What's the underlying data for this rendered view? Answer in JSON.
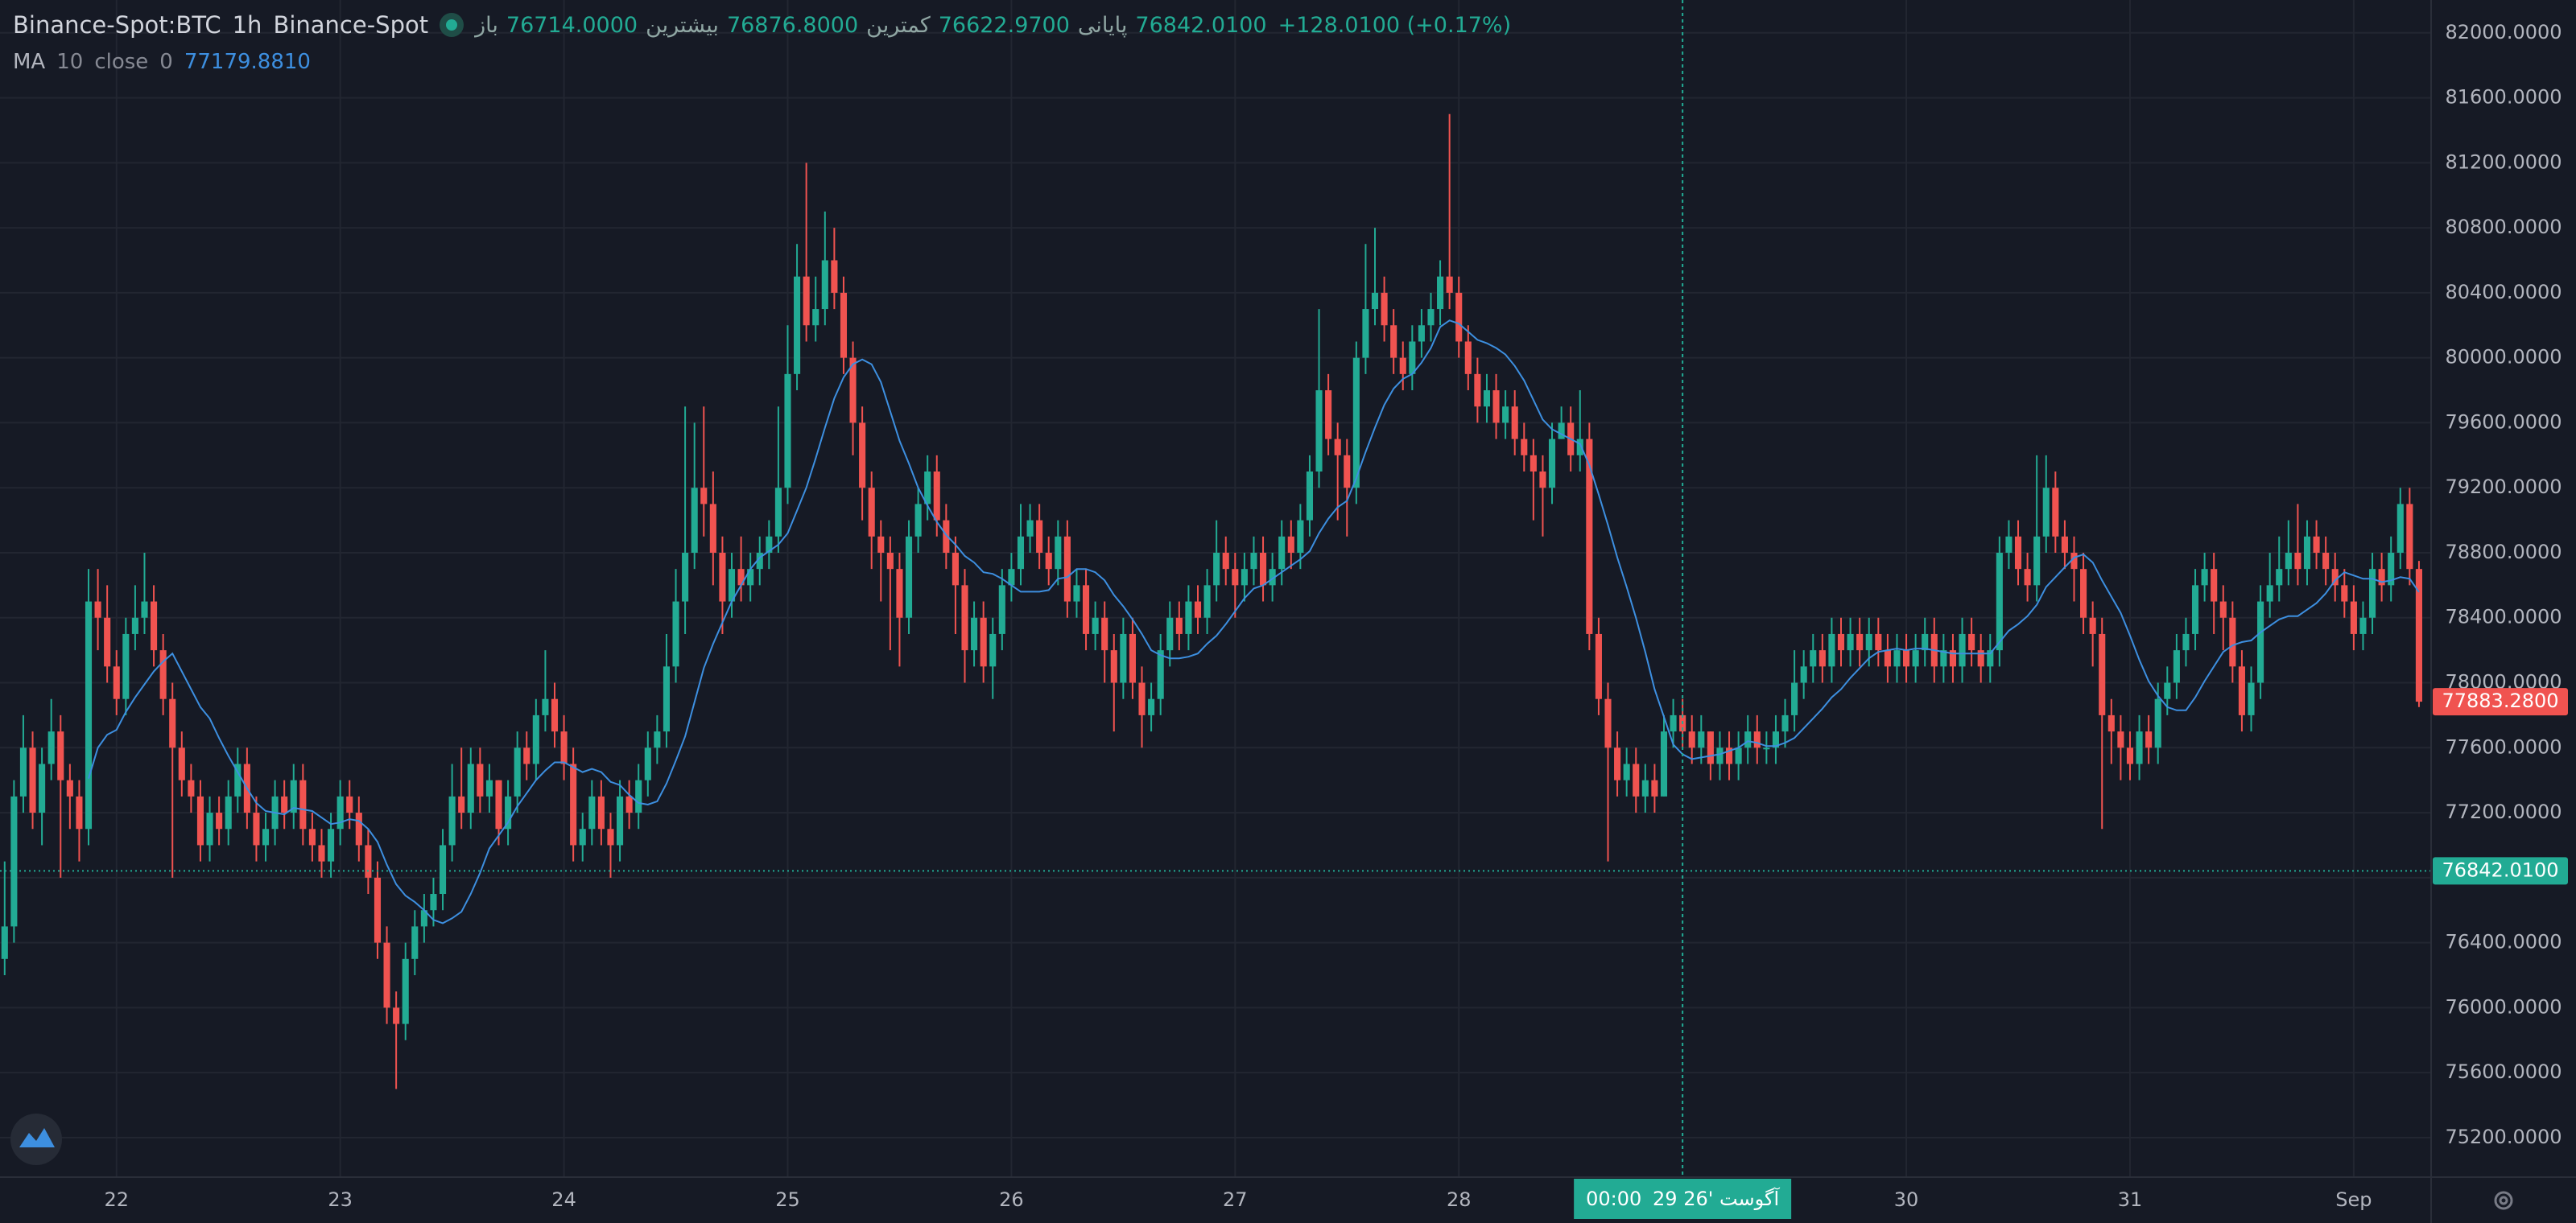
{
  "header": {
    "symbol": "Binance-Spot:BTC",
    "interval": "1h",
    "exchange": "Binance-Spot",
    "ohlc": [
      {
        "label": "باز",
        "value": "76714.0000"
      },
      {
        "label": "بیشترین",
        "value": "76876.8000"
      },
      {
        "label": "کمترین",
        "value": "76622.9700"
      },
      {
        "label": "پایانی",
        "value": "76842.0100"
      }
    ],
    "change": "+128.0100 (+0.17%)"
  },
  "chart_data": {
    "type": "candlestick",
    "up_color": "#22ab94",
    "down_color": "#f05350",
    "grid": true,
    "indicator": {
      "name": "MA",
      "length": 10,
      "source": "close",
      "offset": 0,
      "value": "77179.8810",
      "color": "#3d8fe0"
    },
    "open": [
      76300,
      76500,
      77300,
      77600,
      77200,
      77500,
      77700,
      77400,
      77300,
      77100,
      78500,
      78400,
      78100,
      77900,
      78300,
      78400,
      78500,
      78200,
      77900,
      77600,
      77400,
      77300,
      77000,
      77200,
      77100,
      77300,
      77500,
      77200,
      77000,
      77100,
      77300,
      77200,
      77400,
      77100,
      77000,
      76900,
      77100,
      77300,
      77200,
      77000,
      76800,
      76400,
      76000,
      75900,
      76300,
      76500,
      76600,
      76700,
      77000,
      77300,
      77200,
      77500,
      77300,
      77400,
      77100,
      77300,
      77600,
      77500,
      77800,
      77900,
      77700,
      77500,
      77000,
      77100,
      77300,
      77100,
      77000,
      77300,
      77200,
      77400,
      77600,
      77700,
      78100,
      78500,
      78800,
      79200,
      79100,
      78800,
      78500,
      78700,
      78600,
      78700,
      78800,
      78900,
      79200,
      79900,
      80500,
      80200,
      80300,
      80600,
      80400,
      80000,
      79600,
      79200,
      78900,
      78800,
      78700,
      78400,
      78900,
      79100,
      79300,
      79000,
      78800,
      78600,
      78200,
      78400,
      78100,
      78300,
      78600,
      78700,
      78900,
      79000,
      78800,
      78700,
      78900,
      78500,
      78600,
      78300,
      78400,
      78200,
      78000,
      78300,
      78000,
      77800,
      77900,
      78200,
      78400,
      78300,
      78500,
      78400,
      78600,
      78800,
      78700,
      78600,
      78700,
      78800,
      78600,
      78700,
      78900,
      78800,
      79000,
      79300,
      79800,
      79500,
      79400,
      79200,
      80000,
      80300,
      80400,
      80200,
      80000,
      79900,
      80100,
      80200,
      80300,
      80500,
      80400,
      80100,
      79900,
      79700,
      79800,
      79600,
      79700,
      79500,
      79400,
      79300,
      79200,
      79500,
      79600,
      79400,
      79500,
      78300,
      77900,
      77600,
      77400,
      77500,
      77300,
      77400,
      77300,
      77700,
      77800,
      77700,
      77600,
      77700,
      77500,
      77600,
      77500,
      77600,
      77700,
      77600,
      77600,
      77700,
      77800,
      78000,
      78100,
      78200,
      78100,
      78300,
      78200,
      78300,
      78200,
      78300,
      78200,
      78100,
      78200,
      78100,
      78200,
      78300,
      78100,
      78200,
      78100,
      78300,
      78200,
      78100,
      78200,
      78800,
      78900,
      78700,
      78600,
      78900,
      79200,
      78900,
      78800,
      78700,
      78400,
      78300,
      77800,
      77700,
      77600,
      77500,
      77700,
      77600,
      77900,
      78000,
      78200,
      78300,
      78600,
      78700,
      78500,
      78400,
      78100,
      77800,
      78000,
      78500,
      78600,
      78700,
      78800,
      78700,
      78900,
      78800,
      78700,
      78600,
      78500,
      78300,
      78400,
      78700,
      78600,
      78800,
      79100,
      78700
    ],
    "high": [
      76900,
      77400,
      77800,
      77700,
      77600,
      77900,
      77800,
      77500,
      77400,
      78700,
      78700,
      78600,
      78200,
      78400,
      78600,
      78800,
      78600,
      78300,
      78000,
      77700,
      77500,
      77400,
      77300,
      77300,
      77400,
      77600,
      77600,
      77300,
      77200,
      77400,
      77400,
      77500,
      77500,
      77200,
      77100,
      77200,
      77400,
      77400,
      77300,
      77100,
      76900,
      76500,
      76100,
      76400,
      76600,
      76700,
      76800,
      77100,
      77500,
      77600,
      77600,
      77600,
      77500,
      77400,
      77400,
      77700,
      77700,
      77900,
      78200,
      78000,
      77800,
      77600,
      77200,
      77400,
      77400,
      77200,
      77400,
      77400,
      77500,
      77700,
      77800,
      78300,
      78700,
      79700,
      79600,
      79700,
      79300,
      78900,
      78800,
      78900,
      78800,
      78900,
      79000,
      79700,
      80200,
      80700,
      81200,
      80500,
      80900,
      80800,
      80500,
      80100,
      79700,
      79300,
      79000,
      78900,
      78800,
      79000,
      79200,
      79400,
      79400,
      79100,
      78900,
      78700,
      78500,
      78500,
      78400,
      78700,
      78800,
      79100,
      79100,
      79100,
      78900,
      79000,
      79000,
      78700,
      78700,
      78500,
      78500,
      78300,
      78400,
      78400,
      78100,
      78000,
      78300,
      78500,
      78500,
      78600,
      78600,
      78700,
      79000,
      78900,
      78800,
      78800,
      78900,
      78900,
      78800,
      79000,
      79000,
      79100,
      79400,
      80300,
      79900,
      79600,
      79500,
      80100,
      80700,
      80800,
      80500,
      80300,
      80100,
      80200,
      80300,
      80400,
      80600,
      81500,
      80500,
      80200,
      80000,
      79900,
      79900,
      79800,
      79800,
      79600,
      79500,
      79400,
      79600,
      79700,
      79700,
      79800,
      79600,
      78400,
      78000,
      77700,
      77600,
      77600,
      77500,
      77500,
      77800,
      77900,
      77900,
      77800,
      77800,
      77700,
      77700,
      77700,
      77700,
      77800,
      77800,
      77700,
      77800,
      77900,
      78200,
      78200,
      78300,
      78300,
      78400,
      78400,
      78400,
      78400,
      78400,
      78400,
      78300,
      78300,
      78300,
      78300,
      78400,
      78400,
      78300,
      78300,
      78400,
      78400,
      78300,
      78300,
      78900,
      79000,
      79000,
      78800,
      79400,
      79400,
      79300,
      79000,
      78900,
      78800,
      78500,
      78400,
      77900,
      77800,
      77700,
      77800,
      77800,
      78000,
      78100,
      78300,
      78400,
      78700,
      78800,
      78800,
      78600,
      78500,
      78200,
      78100,
      78600,
      78800,
      78900,
      79000,
      79100,
      79000,
      79000,
      78900,
      78800,
      78700,
      78600,
      78500,
      78800,
      78800,
      78900,
      79200,
      79200,
      78750
    ],
    "low": [
      76200,
      76400,
      77200,
      77100,
      77000,
      77400,
      76800,
      77100,
      76900,
      77000,
      78200,
      78000,
      77800,
      77800,
      78200,
      78300,
      78100,
      77800,
      76800,
      77300,
      77200,
      76900,
      76900,
      77000,
      77000,
      77200,
      77100,
      76900,
      76900,
      77000,
      77100,
      77100,
      77000,
      76900,
      76800,
      76800,
      77000,
      77100,
      76900,
      76700,
      76300,
      75900,
      75500,
      75800,
      76200,
      76400,
      76500,
      76600,
      76900,
      77100,
      77100,
      77200,
      77200,
      77000,
      77000,
      77200,
      77400,
      77400,
      77700,
      77600,
      77400,
      76900,
      76900,
      77000,
      77000,
      76800,
      76900,
      77100,
      77100,
      77300,
      77500,
      77600,
      78000,
      78300,
      78700,
      78900,
      78600,
      78300,
      78400,
      78500,
      78500,
      78600,
      78700,
      78800,
      79100,
      79800,
      80100,
      80100,
      80200,
      80300,
      79900,
      79400,
      79000,
      78700,
      78500,
      78200,
      78100,
      78300,
      78800,
      79000,
      78900,
      78700,
      78300,
      78000,
      78100,
      78000,
      77900,
      78200,
      78500,
      78600,
      78800,
      78700,
      78600,
      78600,
      78400,
      78400,
      78200,
      78200,
      78000,
      77700,
      77900,
      77900,
      77600,
      77700,
      77800,
      78100,
      78200,
      78200,
      78300,
      78300,
      78500,
      78600,
      78400,
      78500,
      78600,
      78500,
      78500,
      78600,
      78700,
      78700,
      78900,
      79200,
      79400,
      79000,
      78900,
      79100,
      79900,
      80200,
      80100,
      79900,
      79800,
      79800,
      80000,
      80100,
      80200,
      80300,
      80000,
      79800,
      79600,
      79600,
      79500,
      79500,
      79400,
      79300,
      79000,
      78900,
      79100,
      79500,
      79300,
      79300,
      78200,
      77800,
      76900,
      77300,
      77300,
      77200,
      77200,
      77200,
      77300,
      77600,
      77600,
      77500,
      77500,
      77400,
      77400,
      77400,
      77400,
      77500,
      77500,
      77500,
      77500,
      77600,
      77700,
      77900,
      78000,
      78000,
      78000,
      78100,
      78100,
      78100,
      78100,
      78100,
      78000,
      78000,
      78000,
      78000,
      78100,
      78000,
      78000,
      78000,
      78000,
      78100,
      78000,
      78000,
      78100,
      78700,
      78600,
      78500,
      78500,
      78800,
      78800,
      78700,
      78500,
      78300,
      78100,
      77100,
      77500,
      77400,
      77400,
      77400,
      77500,
      77500,
      77800,
      77900,
      78100,
      78200,
      78500,
      78300,
      78200,
      78000,
      77700,
      77700,
      77900,
      78400,
      78500,
      78600,
      78600,
      78600,
      78700,
      78600,
      78500,
      78400,
      78200,
      78200,
      78300,
      78500,
      78500,
      78700,
      78600,
      77850
    ],
    "close": [
      76500,
      77300,
      77600,
      77200,
      77500,
      77700,
      77400,
      77300,
      77100,
      78500,
      78400,
      78100,
      77900,
      78300,
      78400,
      78500,
      78200,
      77900,
      77600,
      77400,
      77300,
      77000,
      77200,
      77100,
      77300,
      77500,
      77200,
      77000,
      77100,
      77300,
      77200,
      77400,
      77100,
      77000,
      76900,
      77100,
      77300,
      77200,
      77000,
      76800,
      76400,
      76000,
      75900,
      76300,
      76500,
      76600,
      76700,
      77000,
      77300,
      77200,
      77500,
      77300,
      77400,
      77100,
      77300,
      77600,
      77500,
      77800,
      77900,
      77700,
      77500,
      77000,
      77100,
      77300,
      77100,
      77000,
      77300,
      77200,
      77400,
      77600,
      77700,
      78100,
      78500,
      78800,
      79200,
      79100,
      78800,
      78500,
      78700,
      78600,
      78700,
      78800,
      78900,
      79200,
      79900,
      80500,
      80200,
      80300,
      80600,
      80400,
      80000,
      79600,
      79200,
      78900,
      78800,
      78700,
      78400,
      78900,
      79100,
      79300,
      79000,
      78800,
      78600,
      78200,
      78400,
      78100,
      78300,
      78600,
      78700,
      78900,
      79000,
      78800,
      78700,
      78900,
      78500,
      78600,
      78300,
      78400,
      78200,
      78000,
      78300,
      78000,
      77800,
      77900,
      78200,
      78400,
      78300,
      78500,
      78400,
      78600,
      78800,
      78700,
      78600,
      78700,
      78800,
      78600,
      78700,
      78900,
      78800,
      79000,
      79300,
      79800,
      79500,
      79400,
      79200,
      80000,
      80300,
      80400,
      80200,
      80000,
      79900,
      80100,
      80200,
      80300,
      80500,
      80400,
      80100,
      79900,
      79700,
      79800,
      79600,
      79700,
      79500,
      79400,
      79300,
      79200,
      79500,
      79600,
      79400,
      79500,
      78300,
      77900,
      77600,
      77400,
      77500,
      77300,
      77400,
      77300,
      77700,
      77800,
      77700,
      77600,
      77700,
      77500,
      77600,
      77500,
      77600,
      77700,
      77600,
      77600,
      77700,
      77800,
      78000,
      78100,
      78200,
      78100,
      78300,
      78200,
      78300,
      78200,
      78300,
      78200,
      78100,
      78200,
      78100,
      78200,
      78300,
      78100,
      78200,
      78100,
      78300,
      78200,
      78100,
      78200,
      78800,
      78900,
      78700,
      78600,
      78900,
      79200,
      78900,
      78800,
      78700,
      78400,
      78300,
      77800,
      77700,
      77600,
      77500,
      77700,
      77600,
      77900,
      78000,
      78200,
      78300,
      78600,
      78700,
      78500,
      78400,
      78100,
      77800,
      78000,
      78500,
      78600,
      78700,
      78800,
      78700,
      78900,
      78800,
      78700,
      78600,
      78500,
      78300,
      78400,
      78700,
      78600,
      78800,
      79100,
      78700,
      77883.28
    ],
    "xlim": [
      -0.5,
      260.3
    ],
    "xticks": [
      {
        "value": 12,
        "label": "22"
      },
      {
        "value": 36,
        "label": "23"
      },
      {
        "value": 60,
        "label": "24"
      },
      {
        "value": 84,
        "label": "25"
      },
      {
        "value": 108,
        "label": "26"
      },
      {
        "value": 132,
        "label": "27"
      },
      {
        "value": 156,
        "label": "28"
      },
      {
        "value": 204,
        "label": "30"
      },
      {
        "value": 228,
        "label": "31"
      },
      {
        "value": 252,
        "label": "Sep"
      }
    ],
    "ylim": [
      74957,
      82202
    ],
    "yticks": [
      {
        "value": 75200,
        "label": "75200.0000"
      },
      {
        "value": 75600,
        "label": "75600.0000"
      },
      {
        "value": 76000,
        "label": "76000.0000"
      },
      {
        "value": 76400,
        "label": "76400.0000"
      },
      {
        "value": 76800,
        "label": "76800.0000"
      },
      {
        "value": 77200,
        "label": "77200.0000"
      },
      {
        "value": 77600,
        "label": "77600.0000"
      },
      {
        "value": 78000,
        "label": "78000.0000"
      },
      {
        "value": 78400,
        "label": "78400.0000"
      },
      {
        "value": 78800,
        "label": "78800.0000"
      },
      {
        "value": 79200,
        "label": "79200.0000"
      },
      {
        "value": 79600,
        "label": "79600.0000"
      },
      {
        "value": 80000,
        "label": "80000.0000"
      },
      {
        "value": 80400,
        "label": "80400.0000"
      },
      {
        "value": 80800,
        "label": "80800.0000"
      },
      {
        "value": 81200,
        "label": "81200.0000"
      },
      {
        "value": 81600,
        "label": "81600.0000"
      },
      {
        "value": 82000,
        "label": "82000.0000"
      }
    ],
    "price_lines": [
      {
        "value": 76842.01,
        "label": "76842.0100",
        "color": "#22ab94",
        "dotted": true
      },
      {
        "value": 77883.28,
        "label": "77883.2800",
        "color": "#f05350",
        "dotted": false
      }
    ],
    "crosshair": {
      "x": 180,
      "date": "29 آگوست '26",
      "time": "00:00"
    }
  }
}
